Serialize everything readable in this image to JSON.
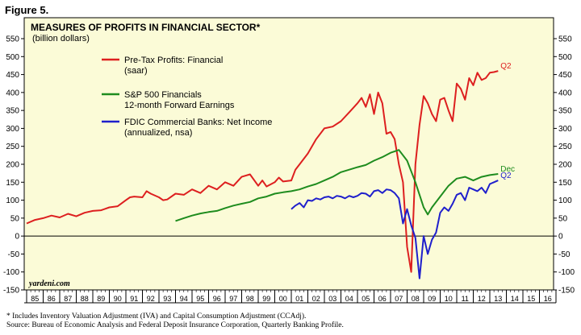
{
  "figure_label": "Figure 5.",
  "footnote": {
    "line1": "*  Includes Inventory Valuation Adjustment (IVA) and Capital Consumption Adjustment (CCAdj).",
    "line2": "   Source: Bureau of Economic Analysis and Federal Deposit Insurance Corporation, Quarterly Banking Profile."
  },
  "chart_data": {
    "type": "line",
    "title": "MEASURES OF PROFITS IN FINANCIAL SECTOR*",
    "subtitle": "(billion dollars)",
    "watermark": "yardeni.com",
    "ylim": [
      -150,
      550
    ],
    "yticks": [
      -150,
      -100,
      -50,
      0,
      50,
      100,
      150,
      200,
      250,
      300,
      350,
      400,
      450,
      500,
      550
    ],
    "xlim": [
      1985,
      2017
    ],
    "xtick_labels": [
      "85",
      "86",
      "87",
      "88",
      "89",
      "90",
      "91",
      "92",
      "93",
      "94",
      "95",
      "96",
      "97",
      "98",
      "99",
      "00",
      "01",
      "02",
      "03",
      "04",
      "05",
      "06",
      "07",
      "08",
      "09",
      "10",
      "11",
      "12",
      "13",
      "14",
      "15",
      "16"
    ],
    "grid": false,
    "background": "#fbfbd7",
    "legend_placement": "top-left",
    "series": [
      {
        "name": "Pre-Tax Profits: Financial",
        "name_line2": "(saar)",
        "color": "#dd1f1f",
        "end_label": "Q2",
        "x": [
          1985.0,
          1985.5,
          1986.0,
          1986.5,
          1987.0,
          1987.5,
          1988.0,
          1988.5,
          1989.0,
          1989.5,
          1990.0,
          1990.5,
          1991.0,
          1991.25,
          1991.5,
          1992.0,
          1992.25,
          1992.5,
          1993.0,
          1993.25,
          1993.5,
          1994.0,
          1994.5,
          1995.0,
          1995.5,
          1996.0,
          1996.5,
          1997.0,
          1997.5,
          1998.0,
          1998.5,
          1999.0,
          1999.25,
          1999.5,
          2000.0,
          2000.25,
          2000.5,
          2001.0,
          2001.25,
          2001.5,
          2002.0,
          2002.5,
          2003.0,
          2003.5,
          2004.0,
          2004.5,
          2005.0,
          2005.25,
          2005.5,
          2005.75,
          2006.0,
          2006.25,
          2006.5,
          2006.75,
          2007.0,
          2007.25,
          2007.5,
          2007.75,
          2008.0,
          2008.25,
          2008.5,
          2008.75,
          2009.0,
          2009.25,
          2009.5,
          2009.75,
          2010.0,
          2010.25,
          2010.5,
          2010.75,
          2011.0,
          2011.25,
          2011.5,
          2011.75,
          2012.0,
          2012.25,
          2012.5,
          2012.75,
          2013.0,
          2013.25,
          2013.5
        ],
        "values": [
          35,
          45,
          50,
          57,
          52,
          62,
          55,
          65,
          70,
          72,
          80,
          83,
          100,
          108,
          110,
          108,
          125,
          118,
          108,
          100,
          102,
          118,
          115,
          130,
          120,
          140,
          130,
          150,
          140,
          165,
          172,
          140,
          155,
          138,
          150,
          163,
          152,
          155,
          185,
          200,
          230,
          270,
          300,
          305,
          320,
          345,
          370,
          385,
          360,
          395,
          340,
          400,
          370,
          285,
          290,
          270,
          200,
          150,
          -30,
          -100,
          200,
          310,
          390,
          370,
          340,
          320,
          380,
          385,
          350,
          320,
          425,
          410,
          380,
          440,
          420,
          455,
          435,
          440,
          455,
          457,
          460
        ]
      },
      {
        "name": "S&P 500 Financials",
        "name_line2": "12-month Forward Earnings",
        "color": "#1e8c1e",
        "end_label": "Dec",
        "x": [
          1994.0,
          1994.5,
          1995.0,
          1995.5,
          1996.0,
          1996.5,
          1997.0,
          1997.5,
          1998.0,
          1998.5,
          1999.0,
          1999.5,
          2000.0,
          2000.5,
          2001.0,
          2001.5,
          2002.0,
          2002.5,
          2003.0,
          2003.5,
          2004.0,
          2004.5,
          2005.0,
          2005.5,
          2006.0,
          2006.5,
          2007.0,
          2007.5,
          2008.0,
          2008.5,
          2009.0,
          2009.25,
          2009.5,
          2010.0,
          2010.5,
          2011.0,
          2011.5,
          2012.0,
          2012.5,
          2013.0,
          2013.5
        ],
        "values": [
          42,
          50,
          57,
          63,
          67,
          70,
          78,
          85,
          90,
          95,
          105,
          110,
          118,
          122,
          125,
          130,
          138,
          145,
          155,
          165,
          178,
          185,
          192,
          198,
          210,
          220,
          232,
          240,
          210,
          150,
          80,
          60,
          80,
          110,
          140,
          160,
          165,
          155,
          165,
          170,
          173
        ]
      },
      {
        "name": "FDIC Commercial Banks: Net Income",
        "name_line2": "(annualized, nsa)",
        "color": "#1f1fcc",
        "end_label": "Q2",
        "x": [
          2001.0,
          2001.25,
          2001.5,
          2001.75,
          2002.0,
          2002.25,
          2002.5,
          2002.75,
          2003.0,
          2003.25,
          2003.5,
          2003.75,
          2004.0,
          2004.25,
          2004.5,
          2004.75,
          2005.0,
          2005.25,
          2005.5,
          2005.75,
          2006.0,
          2006.25,
          2006.5,
          2006.75,
          2007.0,
          2007.25,
          2007.5,
          2007.75,
          2008.0,
          2008.25,
          2008.5,
          2008.75,
          2009.0,
          2009.25,
          2009.5,
          2009.75,
          2010.0,
          2010.25,
          2010.5,
          2010.75,
          2011.0,
          2011.25,
          2011.5,
          2011.75,
          2012.0,
          2012.25,
          2012.5,
          2012.75,
          2013.0,
          2013.25,
          2013.5
        ],
        "values": [
          75,
          85,
          92,
          80,
          100,
          98,
          105,
          102,
          108,
          110,
          105,
          112,
          110,
          105,
          112,
          108,
          112,
          120,
          118,
          110,
          125,
          128,
          120,
          130,
          128,
          120,
          105,
          35,
          75,
          30,
          -5,
          -118,
          0,
          -50,
          -10,
          10,
          65,
          80,
          70,
          90,
          115,
          120,
          100,
          135,
          130,
          125,
          135,
          120,
          145,
          150,
          155
        ]
      }
    ]
  }
}
